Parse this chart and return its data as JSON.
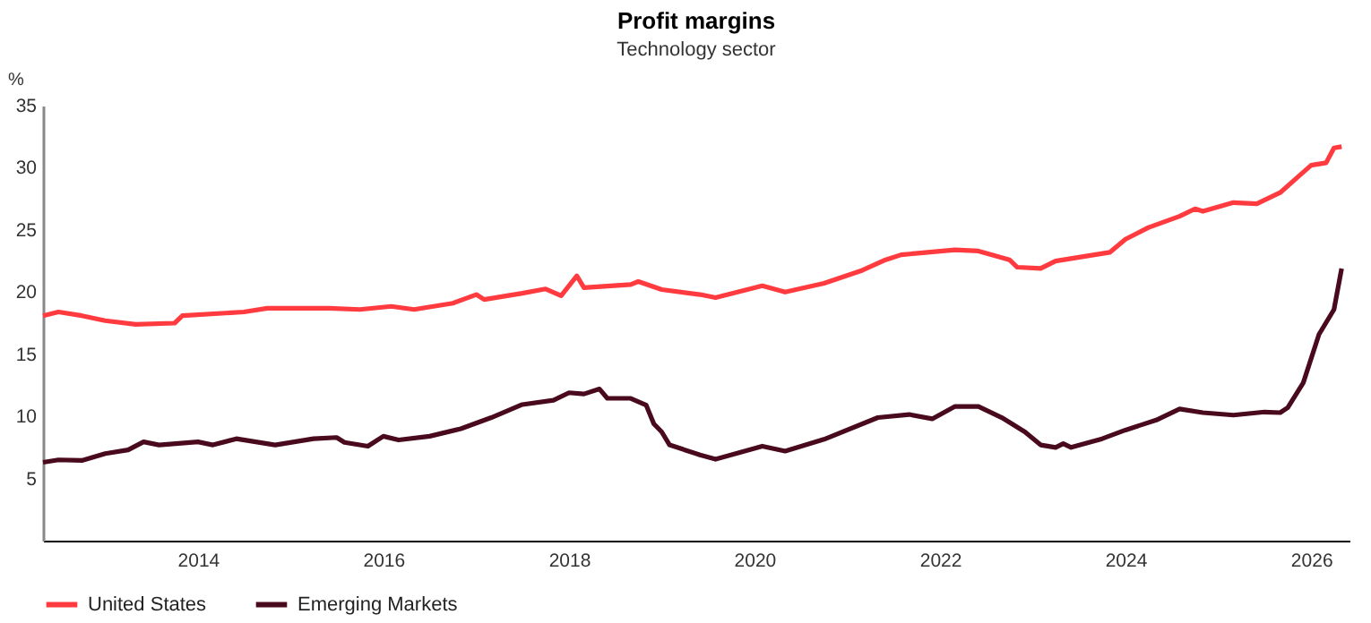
{
  "chart_data": {
    "type": "line",
    "title": "Profit margins",
    "subtitle": "Technology sector",
    "ylabel": "%",
    "xlim": [
      "2012-05",
      "2026-06"
    ],
    "xticks": [
      "2014",
      "2016",
      "2018",
      "2020",
      "2022",
      "2024",
      "2026"
    ],
    "ylim": [
      0,
      35
    ],
    "yticks": [
      5,
      10,
      15,
      20,
      25,
      30,
      35
    ],
    "grid": false,
    "legend": "bottom left",
    "marker": "none",
    "line_style": "solid",
    "series": [
      {
        "name": "United States",
        "color": "#ff3b3f",
        "x": [
          "2012-05",
          "2012-07",
          "2012-10",
          "2013-01",
          "2013-05",
          "2013-10",
          "2013-11",
          "2014-07",
          "2014-10",
          "2015-06",
          "2015-10",
          "2016-02",
          "2016-05",
          "2016-10",
          "2017-01",
          "2017-02",
          "2017-07",
          "2017-10",
          "2017-12",
          "2018-02",
          "2018-03",
          "2018-09",
          "2018-10",
          "2019-01",
          "2019-06",
          "2019-08",
          "2020-02",
          "2020-05",
          "2020-10",
          "2021-03",
          "2021-06",
          "2021-08",
          "2022-03",
          "2022-06",
          "2022-10",
          "2022-11",
          "2023-02",
          "2023-04",
          "2023-09",
          "2023-11",
          "2024-01",
          "2024-04",
          "2024-08",
          "2024-10",
          "2024-11",
          "2025-03",
          "2025-06",
          "2025-09",
          "2025-11",
          "2026-01",
          "2026-03",
          "2026-04",
          "2026-05"
        ],
        "values": [
          18.1,
          18.4,
          18.1,
          17.7,
          17.4,
          17.5,
          18.1,
          18.4,
          18.7,
          18.7,
          18.6,
          18.85,
          18.6,
          19.1,
          19.8,
          19.4,
          19.9,
          20.25,
          19.7,
          21.3,
          20.35,
          20.6,
          20.85,
          20.2,
          19.8,
          19.55,
          20.5,
          20.0,
          20.7,
          21.75,
          22.6,
          23.0,
          23.4,
          23.3,
          22.6,
          22.0,
          21.9,
          22.5,
          23.0,
          23.2,
          24.25,
          25.2,
          26.1,
          26.7,
          26.5,
          27.2,
          27.1,
          28.0,
          29.1,
          30.2,
          30.4,
          31.6,
          31.7
        ]
      },
      {
        "name": "Emerging Markets",
        "color": "#4a0a1e",
        "x": [
          "2012-05",
          "2012-07",
          "2012-10",
          "2013-01",
          "2013-04",
          "2013-06",
          "2013-08",
          "2014-01",
          "2014-03",
          "2014-06",
          "2014-11",
          "2015-04",
          "2015-07",
          "2015-08",
          "2015-11",
          "2016-01",
          "2016-03",
          "2016-07",
          "2016-11",
          "2017-03",
          "2017-07",
          "2017-11",
          "2018-01",
          "2018-03",
          "2018-05",
          "2018-06",
          "2018-09",
          "2018-11",
          "2018-12",
          "2019-01",
          "2019-02",
          "2019-06",
          "2019-08",
          "2020-02",
          "2020-05",
          "2020-10",
          "2021-05",
          "2021-09",
          "2021-12",
          "2022-03",
          "2022-06",
          "2022-09",
          "2022-12",
          "2023-02",
          "2023-04",
          "2023-05",
          "2023-06",
          "2023-10",
          "2024-01",
          "2024-05",
          "2024-08",
          "2024-11",
          "2025-03",
          "2025-07",
          "2025-09",
          "2025-10",
          "2025-12",
          "2026-02",
          "2026-04",
          "2026-05"
        ],
        "values": [
          6.3,
          6.5,
          6.45,
          7.0,
          7.3,
          7.95,
          7.7,
          7.95,
          7.7,
          8.2,
          7.7,
          8.2,
          8.3,
          7.9,
          7.6,
          8.4,
          8.1,
          8.4,
          9.0,
          9.9,
          10.95,
          11.3,
          11.9,
          11.8,
          12.2,
          11.45,
          11.45,
          10.9,
          9.4,
          8.75,
          7.7,
          6.9,
          6.55,
          7.6,
          7.2,
          8.15,
          9.9,
          10.15,
          9.8,
          10.8,
          10.8,
          9.9,
          8.75,
          7.7,
          7.5,
          7.8,
          7.5,
          8.2,
          8.9,
          9.7,
          10.6,
          10.3,
          10.1,
          10.35,
          10.3,
          10.7,
          12.7,
          16.6,
          18.6,
          21.9
        ]
      }
    ]
  }
}
